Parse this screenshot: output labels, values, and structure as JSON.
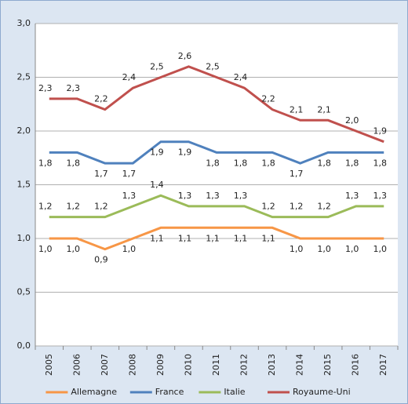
{
  "chart_data": {
    "type": "line",
    "categories": [
      "2005",
      "2006",
      "2007",
      "2008",
      "2009",
      "2010",
      "2011",
      "2012",
      "2013",
      "2014",
      "2015",
      "2016",
      "2017"
    ],
    "series": [
      {
        "name": "Allemagne",
        "color": "#f79646",
        "values": [
          1.0,
          1.0,
          0.9,
          1.0,
          1.1,
          1.1,
          1.1,
          1.1,
          1.1,
          1.0,
          1.0,
          1.0,
          1.0
        ],
        "value_labels": [
          "1,0",
          "1,0",
          "0,9",
          "1,0",
          "1,1",
          "1,1",
          "1,1",
          "1,1",
          "1,1",
          "1,0",
          "1,0",
          "1,0",
          "1,0"
        ]
      },
      {
        "name": "France",
        "color": "#4f81bd",
        "values": [
          1.8,
          1.8,
          1.7,
          1.7,
          1.9,
          1.9,
          1.8,
          1.8,
          1.8,
          1.7,
          1.8,
          1.8,
          1.8
        ],
        "value_labels": [
          "1,8",
          "1,8",
          "1,7",
          "1,7",
          "1,9",
          "1,9",
          "1,8",
          "1,8",
          "1,8",
          "1,7",
          "1,8",
          "1,8",
          "1,8"
        ]
      },
      {
        "name": "Italie",
        "color": "#9bbb59",
        "values": [
          1.2,
          1.2,
          1.2,
          1.3,
          1.4,
          1.3,
          1.3,
          1.3,
          1.2,
          1.2,
          1.2,
          1.3,
          1.3
        ],
        "value_labels": [
          "1,2",
          "1,2",
          "1,2",
          "1,3",
          "1,4",
          "1,3",
          "1,3",
          "1,3",
          "1,2",
          "1,2",
          "1,2",
          "1,3",
          "1,3"
        ]
      },
      {
        "name": "Royaume-Uni",
        "color": "#c0504d",
        "values": [
          2.3,
          2.3,
          2.2,
          2.4,
          2.5,
          2.6,
          2.5,
          2.4,
          2.2,
          2.1,
          2.1,
          2.0,
          1.9
        ],
        "value_labels": [
          "2,3",
          "2,3",
          "2,2",
          "2,4",
          "2,5",
          "2,6",
          "2,5",
          "2,4",
          "2,2",
          "2,1",
          "2,1",
          "2,0",
          "1,9"
        ]
      }
    ],
    "ylim": [
      0,
      3
    ],
    "yticks": [
      {
        "value": 0,
        "label": "0,0"
      },
      {
        "value": 0.5,
        "label": "0,5"
      },
      {
        "value": 1,
        "label": "1,0"
      },
      {
        "value": 1.5,
        "label": "1,5"
      },
      {
        "value": 2,
        "label": "2,0"
      },
      {
        "value": 2.5,
        "label": "2,5"
      },
      {
        "value": 3,
        "label": "3,0"
      }
    ],
    "grid": true,
    "legend": "bottom"
  }
}
